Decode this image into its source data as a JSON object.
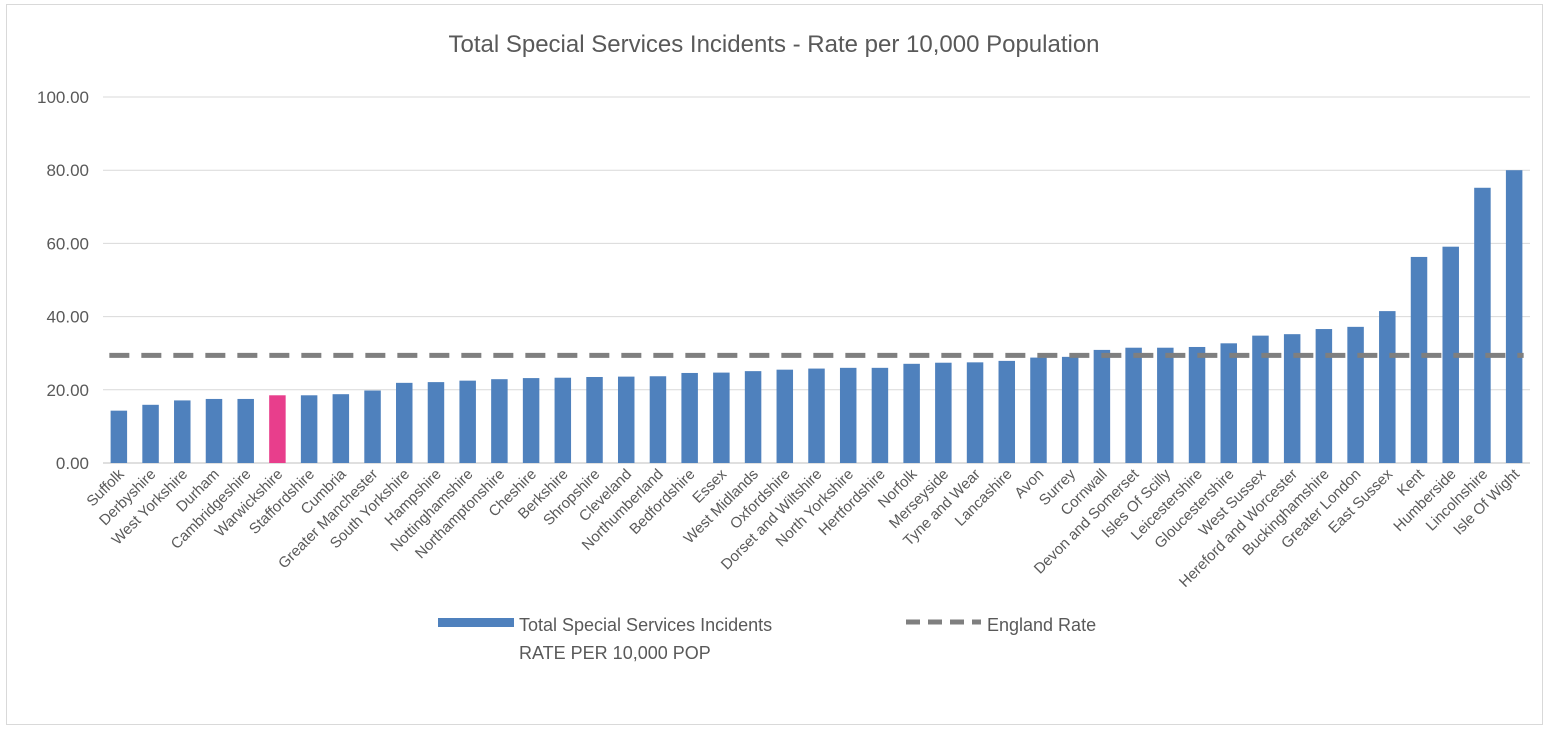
{
  "chart_data": {
    "type": "bar",
    "title": "Total Special Services Incidents - Rate per 10,000 Population",
    "xlabel": "",
    "ylabel": "",
    "ylim": [
      0,
      100
    ],
    "y_ticks": [
      "0.00",
      "20.00",
      "40.00",
      "60.00",
      "80.00",
      "100.00"
    ],
    "grid": true,
    "legend_position": "bottom",
    "categories": [
      "Suffolk",
      "Derbyshire",
      "West Yorkshire",
      "Durham",
      "Cambridgeshire",
      "Warwickshire",
      "Staffordshire",
      "Cumbria",
      "Greater Manchester",
      "South Yorkshire",
      "Hampshire",
      "Nottinghamshire",
      "Northamptonshire",
      "Cheshire",
      "Berkshire",
      "Shropshire",
      "Cleveland",
      "Northumberland",
      "Bedfordshire",
      "Essex",
      "West Midlands",
      "Oxfordshire",
      "Dorset and Wiltshire",
      "North Yorkshire",
      "Hertfordshire",
      "Norfolk",
      "Merseyside",
      "Tyne and Wear",
      "Lancashire",
      "Avon",
      "Surrey",
      "Cornwall",
      "Devon and Somerset",
      "Isles Of Scilly",
      "Leicestershire",
      "Gloucestershire",
      "West Sussex",
      "Hereford and Worcester",
      "Buckinghamshire",
      "Greater London",
      "East Sussex",
      "Kent",
      "Humberside",
      "Lincolnshire",
      "Isle Of Wight"
    ],
    "series": [
      {
        "name": "Total Special Services Incidents RATE PER 10,000 POP",
        "legend_lines": [
          "Total Special Services Incidents",
          "RATE PER 10,000 POP"
        ],
        "type": "bar",
        "color": "#4f81bd",
        "values": [
          14.3,
          15.9,
          17.1,
          17.5,
          17.5,
          18.5,
          18.5,
          18.8,
          19.8,
          21.9,
          22.1,
          22.5,
          22.9,
          23.2,
          23.3,
          23.5,
          23.6,
          23.7,
          24.6,
          24.7,
          25.1,
          25.5,
          25.8,
          26.0,
          26.0,
          27.1,
          27.4,
          27.5,
          27.9,
          28.8,
          29.0,
          30.9,
          31.5,
          31.5,
          31.7,
          32.7,
          34.8,
          35.2,
          36.6,
          37.2,
          41.5,
          56.3,
          59.1,
          75.2,
          80.0
        ]
      },
      {
        "name": "England Rate",
        "type": "line",
        "style": "dashed",
        "color": "#7f7f7f",
        "value": 29.4
      }
    ],
    "highlight": {
      "category": "Warwickshire",
      "color": "#e83e8c"
    }
  }
}
